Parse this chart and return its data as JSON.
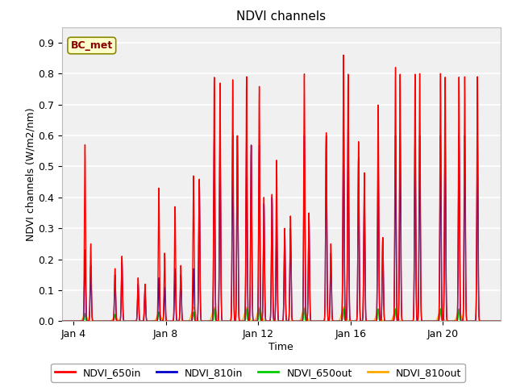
{
  "title": "NDVI channels",
  "xlabel": "Time",
  "ylabel": "NDVI channels (W/m2/nm)",
  "ylim": [
    0.0,
    0.95
  ],
  "yticks": [
    0.0,
    0.1,
    0.2,
    0.3,
    0.4,
    0.5,
    0.6,
    0.7,
    0.8,
    0.9
  ],
  "background_color": "#ffffff",
  "axes_bg_color": "#f0f0f0",
  "grid_color": "#ffffff",
  "annotation_text": "BC_met",
  "annotation_bg": "#ffffcc",
  "annotation_border": "#888800",
  "colors": {
    "NDVI_650in": "#ff0000",
    "NDVI_810in": "#0000cc",
    "NDVI_650out": "#00cc00",
    "NDVI_810out": "#ffaa00"
  },
  "legend_labels": [
    "NDVI_650in",
    "NDVI_810in",
    "NDVI_650out",
    "NDVI_810out"
  ],
  "xticklabels": [
    "Jan 4",
    "Jan 8",
    "Jan 12",
    "Jan 16",
    "Jan 20"
  ],
  "xtick_positions": [
    3,
    7,
    11,
    15,
    19
  ],
  "xlim": [
    2.5,
    21.5
  ]
}
